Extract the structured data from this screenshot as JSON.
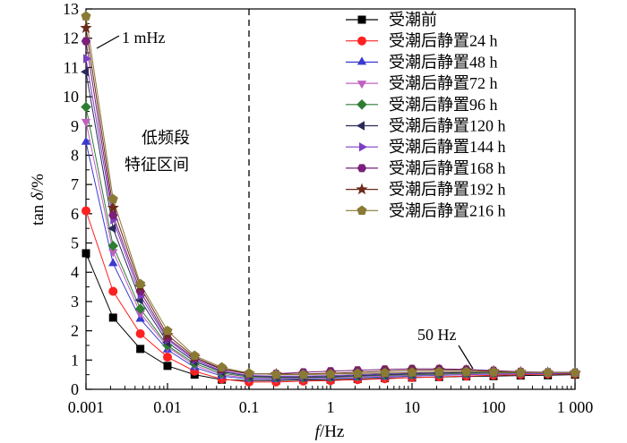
{
  "chart_data": {
    "type": "line",
    "xscale": "log",
    "xlabel_var": "f",
    "xlabel_unit": "/Hz",
    "ylabel_prefix": "tan ",
    "ylabel_var": "δ",
    "ylabel_unit": "/%",
    "xlim": [
      0.001,
      1000
    ],
    "ylim": [
      0,
      13
    ],
    "x_ticks": [
      {
        "value": 0.001,
        "label": "0.001"
      },
      {
        "value": 0.01,
        "label": "0.01"
      },
      {
        "value": 0.1,
        "label": "0.1"
      },
      {
        "value": 1,
        "label": "1"
      },
      {
        "value": 10,
        "label": "10"
      },
      {
        "value": 100,
        "label": "100"
      },
      {
        "value": 1000,
        "label": "1 000"
      }
    ],
    "y_ticks": [
      0,
      1,
      2,
      3,
      4,
      5,
      6,
      7,
      8,
      9,
      10,
      11,
      12,
      13
    ],
    "x": [
      0.001,
      0.00215,
      0.00464,
      0.01,
      0.0215,
      0.0464,
      0.1,
      0.215,
      0.464,
      1,
      2.15,
      4.64,
      10,
      21.5,
      46.4,
      100,
      215,
      464,
      1000
    ],
    "series": [
      {
        "name": "受潮前",
        "color": "#000000",
        "marker": "square",
        "values": [
          4.65,
          2.45,
          1.38,
          0.8,
          0.5,
          0.33,
          0.3,
          0.3,
          0.32,
          0.33,
          0.35,
          0.38,
          0.4,
          0.42,
          0.44,
          0.45,
          0.47,
          0.48,
          0.5
        ]
      },
      {
        "name": "受潮后静置24 h",
        "color": "#ff2020",
        "marker": "circle",
        "values": [
          6.1,
          3.35,
          1.9,
          1.1,
          0.62,
          0.35,
          0.25,
          0.25,
          0.28,
          0.3,
          0.33,
          0.36,
          0.4,
          0.43,
          0.45,
          0.48,
          0.5,
          0.52,
          0.53
        ]
      },
      {
        "name": "受潮后静置48 h",
        "color": "#3a3ad0",
        "marker": "triangle-up",
        "values": [
          8.45,
          4.3,
          2.4,
          1.35,
          0.75,
          0.45,
          0.35,
          0.34,
          0.36,
          0.38,
          0.4,
          0.42,
          0.45,
          0.48,
          0.5,
          0.52,
          0.53,
          0.54,
          0.55
        ]
      },
      {
        "name": "受潮后静置72 h",
        "color": "#c060c0",
        "marker": "triangle-down",
        "values": [
          9.15,
          4.7,
          2.6,
          1.45,
          0.82,
          0.5,
          0.38,
          0.37,
          0.38,
          0.4,
          0.42,
          0.45,
          0.48,
          0.5,
          0.52,
          0.54,
          0.55,
          0.56,
          0.57
        ]
      },
      {
        "name": "受潮后静置96 h",
        "color": "#2e7d32",
        "marker": "diamond",
        "values": [
          9.65,
          4.9,
          2.75,
          1.5,
          0.88,
          0.55,
          0.42,
          0.4,
          0.4,
          0.42,
          0.45,
          0.48,
          0.5,
          0.52,
          0.55,
          0.56,
          0.57,
          0.58,
          0.58
        ]
      },
      {
        "name": "受潮后静置120 h",
        "color": "#2a2a5a",
        "marker": "triangle-left",
        "values": [
          10.85,
          5.5,
          3.05,
          1.6,
          0.95,
          0.6,
          0.45,
          0.42,
          0.42,
          0.44,
          0.47,
          0.5,
          0.53,
          0.55,
          0.58,
          0.58,
          0.58,
          0.58,
          0.57
        ]
      },
      {
        "name": "受潮后静置144 h",
        "color": "#7b3fc4",
        "marker": "triangle-right",
        "values": [
          11.3,
          5.8,
          3.2,
          1.7,
          1.0,
          0.63,
          0.47,
          0.45,
          0.45,
          0.47,
          0.5,
          0.53,
          0.56,
          0.58,
          0.6,
          0.59,
          0.58,
          0.57,
          0.56
        ]
      },
      {
        "name": "受潮后静置168 h",
        "color": "#7a1f7a",
        "marker": "hexagon",
        "values": [
          11.9,
          5.95,
          3.35,
          1.75,
          1.05,
          0.68,
          0.52,
          0.53,
          0.58,
          0.62,
          0.65,
          0.68,
          0.7,
          0.7,
          0.68,
          0.64,
          0.6,
          0.58,
          0.57
        ]
      },
      {
        "name": "受潮后静置192 h",
        "color": "#6b2a1a",
        "marker": "star",
        "values": [
          12.35,
          6.2,
          3.5,
          1.85,
          1.1,
          0.7,
          0.54,
          0.52,
          0.52,
          0.55,
          0.58,
          0.62,
          0.65,
          0.66,
          0.65,
          0.62,
          0.59,
          0.57,
          0.56
        ]
      },
      {
        "name": "受潮后静置216 h",
        "color": "#8a7a35",
        "marker": "pentagon",
        "values": [
          12.75,
          6.5,
          3.6,
          2.0,
          1.15,
          0.75,
          0.55,
          0.5,
          0.5,
          0.52,
          0.54,
          0.56,
          0.58,
          0.6,
          0.6,
          0.59,
          0.58,
          0.57,
          0.56
        ]
      }
    ],
    "annotations": [
      {
        "text": "1 mHz"
      },
      {
        "text": "低频段"
      },
      {
        "text": "特征区间"
      },
      {
        "text": "50 Hz"
      }
    ],
    "vline_x": 0.1,
    "legend_position": "top-right",
    "grid": false
  }
}
